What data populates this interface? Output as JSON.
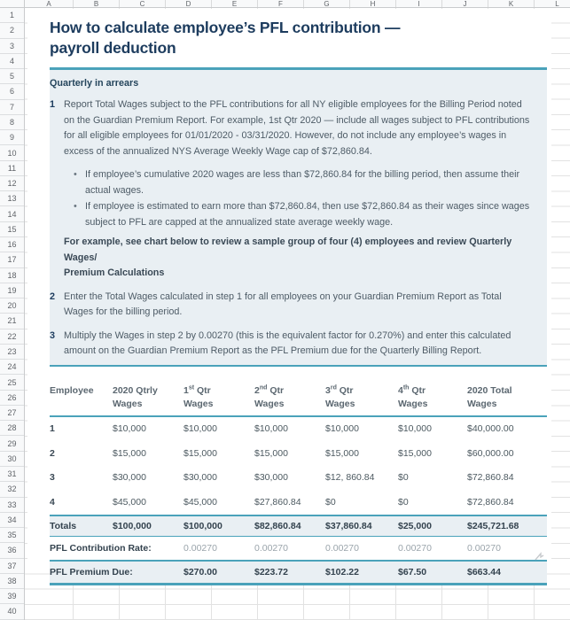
{
  "spreadsheet": {
    "col_letters": [
      "A",
      "B",
      "C",
      "D",
      "E",
      "F",
      "G",
      "H",
      "I",
      "J",
      "K",
      "L"
    ],
    "row_count": 41
  },
  "colors": {
    "accent_teal": "#4aa2ba",
    "title_navy": "#1d3c5e",
    "panel_blue": "#e9eff3",
    "body_text": "#4d5b66"
  },
  "doc": {
    "title": "How to calculate employee’s PFL contribution —\npayroll deduction",
    "section_heading": "Quarterly in arrears",
    "step1": {
      "num": "1",
      "text": "Report Total Wages subject to the PFL contributions for all NY eligible employees for the Billing Period noted on the Guardian Premium Report. For example, 1st Qtr 2020 — include all wages subject to PFL contributions for all eligible employees for 01/01/2020 - 03/31/2020. However, do not include any employee’s wages in excess of the annualized NYS Average Weekly Wage cap of $72,860.84."
    },
    "bullet_glyph": "•",
    "bullets": [
      "If employee’s cumulative 2020 wages are less than $72,860.84 for the billing period, then assume their actual wages.",
      "If employee is estimated to earn more than $72,860.84, then use $72,860.84 as their wages since wages subject to PFL are capped at the annualized state average weekly wage."
    ],
    "example_note": "For example, see chart below to review a sample group of four (4) employees and review Quarterly Wages/\nPremium Calculations",
    "step2": {
      "num": "2",
      "text": "Enter the Total Wages calculated in step 1 for all employees on your Guardian Premium Report as Total Wages for the billing period."
    },
    "step3": {
      "num": "3",
      "text": "Multiply the Wages in step 2 by 0.00270 (this is the equivalent factor for 0.270%) and enter this calculated amount on the Guardian Premium Report as the PFL Premium due for the Quarterly Billing Report."
    },
    "table": {
      "headers": [
        {
          "line1": "Employee",
          "line2": ""
        },
        {
          "line1": "2020 Qtrly",
          "line2": "Wages"
        },
        {
          "pre": "1",
          "sup": "st",
          "post": " Qtr",
          "line2": "Wages"
        },
        {
          "pre": "2",
          "sup": "nd",
          "post": " Qtr",
          "line2": "Wages"
        },
        {
          "pre": "3",
          "sup": "rd",
          "post": " Qtr",
          "line2": "Wages"
        },
        {
          "pre": "4",
          "sup": "th",
          "post": " Qtr",
          "line2": "Wages"
        },
        {
          "line1": "2020 Total",
          "line2": "Wages"
        }
      ],
      "rows": [
        [
          "1",
          "$10,000",
          "$10,000",
          "$10,000",
          "$10,000",
          "$10,000",
          "$40,000.00"
        ],
        [
          "2",
          "$15,000",
          "$15,000",
          "$15,000",
          "$15,000",
          "$15,000",
          "$60,000.00"
        ],
        [
          "3",
          "$30,000",
          "$30,000",
          "$30,000",
          "$12, 860.84",
          "$0",
          "$72,860.84"
        ],
        [
          "4",
          "$45,000",
          "$45,000",
          "$27,860.84",
          "$0",
          "$0",
          "$72,860.84"
        ]
      ],
      "totals": {
        "label": "Totals",
        "values": [
          "$100,000",
          "$100,000",
          "$82,860.84",
          "$37,860.84",
          "$25,000",
          "$245,721.68"
        ]
      },
      "rate": {
        "label": "PFL Contribution Rate:",
        "values": [
          "0.00270",
          "0.00270",
          "0.00270",
          "0.00270",
          "0.00270"
        ]
      },
      "premium": {
        "label": "PFL Premium Due:",
        "values": [
          "$270.00",
          "$223.72",
          "$102.22",
          "$67.50",
          "$663.44"
        ]
      }
    }
  }
}
